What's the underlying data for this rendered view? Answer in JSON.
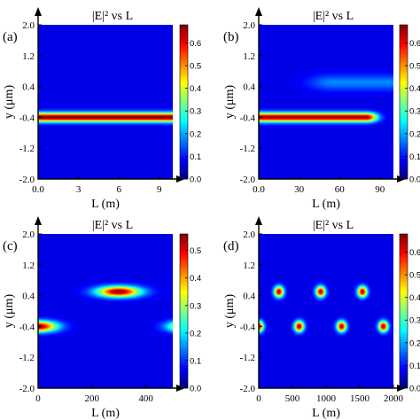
{
  "chart_data": [
    {
      "type": "heatmap",
      "panel_label": "(a)",
      "title": "|E|² vs L",
      "xlabel": "L (m)",
      "ylabel": "y (μm)",
      "x_ticks": [
        "0.0",
        "3",
        "6",
        "9"
      ],
      "x_tick_values": [
        0,
        3,
        6,
        9
      ],
      "xlim": [
        0,
        10
      ],
      "y_ticks": [
        "2.0",
        "1.2",
        "0.4",
        "-0.4",
        "-1.2",
        "-2.0"
      ],
      "y_tick_values": [
        2.0,
        1.2,
        0.4,
        -0.4,
        -1.2,
        -2.0
      ],
      "ylim": [
        -2.0,
        2.0
      ],
      "colorbar_ticks": [
        "0.0",
        "0.1",
        "0.2",
        "0.3",
        "0.4",
        "0.5",
        "0.6"
      ],
      "colorbar_tick_values": [
        0,
        0.1,
        0.2,
        0.3,
        0.4,
        0.5,
        0.6
      ],
      "colorbar_range": [
        0,
        0.68
      ],
      "blobs": [
        {
          "x0": -10,
          "x1": 20,
          "sx": 1,
          "y0": -0.4,
          "sy": 0.12,
          "amp": 0.68
        }
      ]
    },
    {
      "type": "heatmap",
      "panel_label": "(b)",
      "title": "|E|² vs L",
      "xlabel": "L (m)",
      "ylabel": "y (μm)",
      "x_ticks": [
        "0.0",
        "30",
        "60",
        "90"
      ],
      "x_tick_values": [
        0,
        30,
        60,
        90
      ],
      "xlim": [
        0,
        100
      ],
      "y_ticks": [
        "2.0",
        "1.2",
        "0.4",
        "-0.4",
        "-1.2",
        "-2.0"
      ],
      "y_tick_values": [
        2.0,
        1.2,
        0.4,
        -0.4,
        -1.2,
        -2.0
      ],
      "ylim": [
        -2.0,
        2.0
      ],
      "colorbar_ticks": [
        "0.0",
        "0.1",
        "0.2",
        "0.3",
        "0.4",
        "0.5",
        "0.6"
      ],
      "colorbar_tick_values": [
        0,
        0.1,
        0.2,
        0.3,
        0.4,
        0.5,
        0.6
      ],
      "colorbar_range": [
        0,
        0.68
      ],
      "blobs": [
        {
          "x0": -100,
          "x1": 80,
          "sx": 8,
          "y0": -0.4,
          "sy": 0.12,
          "amp": 0.66
        },
        {
          "x0": 55,
          "x1": 200,
          "sx": 18,
          "y0": 0.5,
          "sy": 0.2,
          "amp": 0.12
        }
      ]
    },
    {
      "type": "heatmap",
      "panel_label": "(c)",
      "title": "|E|² vs L",
      "xlabel": "L (m)",
      "ylabel": "y (μm)",
      "x_ticks": [
        "0",
        "200",
        "400"
      ],
      "x_tick_values": [
        0,
        200,
        400
      ],
      "xlim": [
        0,
        500
      ],
      "y_ticks": [
        "2.0",
        "1.2",
        "0.4",
        "-0.4",
        "-1.2",
        "-2.0"
      ],
      "y_tick_values": [
        2.0,
        1.2,
        0.4,
        -0.4,
        -1.2,
        -2.0
      ],
      "ylim": [
        -2.0,
        2.0
      ],
      "colorbar_ticks": [
        "0.0",
        "0.1",
        "0.2",
        "0.3",
        "0.4",
        "0.5"
      ],
      "colorbar_tick_values": [
        0,
        0.1,
        0.2,
        0.3,
        0.4,
        0.5
      ],
      "colorbar_range": [
        0,
        0.56
      ],
      "blobs": [
        {
          "x0": 0,
          "x1": 0,
          "sx": 70,
          "y0": -0.4,
          "sy": 0.14,
          "amp": 0.56
        },
        {
          "x0": 300,
          "x1": 300,
          "sx": 80,
          "y0": 0.5,
          "sy": 0.14,
          "amp": 0.56
        },
        {
          "x0": 560,
          "x1": 560,
          "sx": 70,
          "y0": -0.4,
          "sy": 0.14,
          "amp": 0.56
        }
      ]
    },
    {
      "type": "heatmap",
      "panel_label": "(d)",
      "title": "|E|² vs L",
      "xlabel": "L (m)",
      "ylabel": "y (μm)",
      "x_ticks": [
        "0",
        "500",
        "1000",
        "1500",
        "2000"
      ],
      "x_tick_values": [
        0,
        500,
        1000,
        1500,
        2000
      ],
      "xlim": [
        0,
        2000
      ],
      "y_ticks": [
        "2.0",
        "1.2",
        "0.4",
        "-0.4",
        "-1.2",
        "-2.0"
      ],
      "y_tick_values": [
        2.0,
        1.2,
        0.4,
        -0.4,
        -1.2,
        -2.0
      ],
      "ylim": [
        -2.0,
        2.0
      ],
      "colorbar_ticks": [
        "0.0",
        "0.1",
        "0.2",
        "0.3",
        "0.4",
        "0.5",
        "0.6"
      ],
      "colorbar_tick_values": [
        0,
        0.1,
        0.2,
        0.3,
        0.4,
        0.5,
        0.6
      ],
      "colorbar_range": [
        0,
        0.68
      ],
      "blobs": [
        {
          "x0": 0,
          "x1": 0,
          "sx": 70,
          "y0": -0.4,
          "sy": 0.14,
          "amp": 0.66
        },
        {
          "x0": 300,
          "x1": 300,
          "sx": 70,
          "y0": 0.5,
          "sy": 0.14,
          "amp": 0.66
        },
        {
          "x0": 600,
          "x1": 600,
          "sx": 70,
          "y0": -0.4,
          "sy": 0.14,
          "amp": 0.66
        },
        {
          "x0": 920,
          "x1": 920,
          "sx": 70,
          "y0": 0.5,
          "sy": 0.14,
          "amp": 0.66
        },
        {
          "x0": 1230,
          "x1": 1230,
          "sx": 70,
          "y0": -0.4,
          "sy": 0.14,
          "amp": 0.66
        },
        {
          "x0": 1540,
          "x1": 1540,
          "sx": 70,
          "y0": 0.5,
          "sy": 0.14,
          "amp": 0.66
        },
        {
          "x0": 1850,
          "x1": 1850,
          "sx": 70,
          "y0": -0.4,
          "sy": 0.14,
          "amp": 0.66
        }
      ]
    }
  ]
}
